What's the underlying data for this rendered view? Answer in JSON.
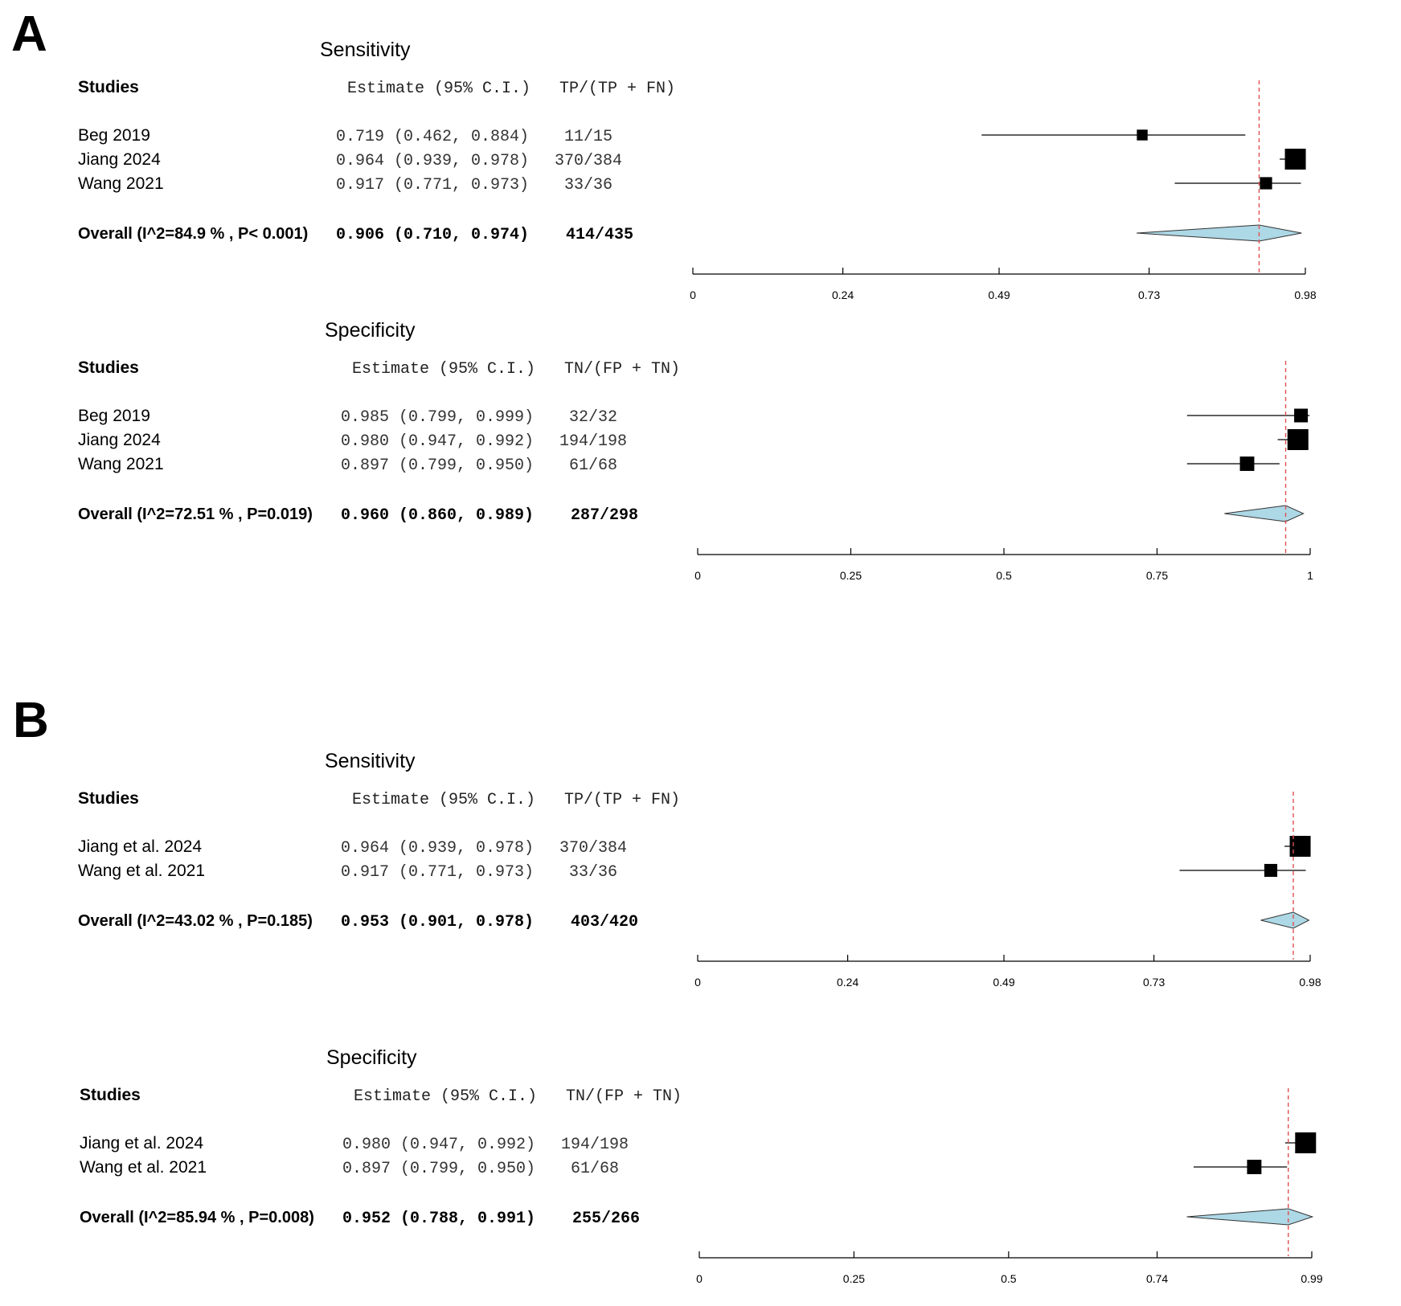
{
  "panel_labels": [
    "A",
    "B"
  ],
  "chart_data": [
    {
      "type": "forest",
      "panel": "A",
      "title": "Sensitivity",
      "columns": {
        "studies": "Studies",
        "estimate": "Estimate (95% C.I.)",
        "count": "TP/(TP + FN)"
      },
      "rows": [
        {
          "study": "Beg  2019",
          "estimate": 0.719,
          "lower": 0.462,
          "upper": 0.884,
          "estimate_text": "0.719 (0.462, 0.884)",
          "count_text": "11/15",
          "weight": 0.3
        },
        {
          "study": "Jiang 2024",
          "estimate": 0.964,
          "lower": 0.939,
          "upper": 0.978,
          "estimate_text": "0.964 (0.939, 0.978)",
          "count_text": "370/384",
          "weight": 1.0
        },
        {
          "study": "Wang 2021",
          "estimate": 0.917,
          "lower": 0.771,
          "upper": 0.973,
          "estimate_text": "0.917 (0.771, 0.973)",
          "count_text": "33/36",
          "weight": 0.4
        }
      ],
      "overall": {
        "label": "Overall (I^2=84.9 % , P< 0.001)",
        "estimate": 0.906,
        "lower": 0.71,
        "upper": 0.974,
        "estimate_text": "0.906 (0.710, 0.974)",
        "count_text": "414/435"
      },
      "reference_line": 0.906,
      "xlim": [
        0,
        0.98
      ],
      "ticks": [
        0,
        0.24,
        0.49,
        0.73,
        0.98
      ],
      "tick_labels": [
        "0",
        "0.24",
        "0.49",
        "0.73",
        "0.98"
      ]
    },
    {
      "type": "forest",
      "panel": "A",
      "title": "Specificity",
      "columns": {
        "studies": "Studies",
        "estimate": "Estimate (95% C.I.)",
        "count": "TN/(FP + TN)"
      },
      "rows": [
        {
          "study": "Beg  2019",
          "estimate": 0.985,
          "lower": 0.799,
          "upper": 0.999,
          "estimate_text": "0.985 (0.799, 0.999)",
          "count_text": "32/32",
          "weight": 0.5
        },
        {
          "study": "Jiang 2024",
          "estimate": 0.98,
          "lower": 0.947,
          "upper": 0.992,
          "estimate_text": "0.980 (0.947, 0.992)",
          "count_text": "194/198",
          "weight": 1.0
        },
        {
          "study": "Wang 2021",
          "estimate": 0.897,
          "lower": 0.799,
          "upper": 0.95,
          "estimate_text": "0.897 (0.799, 0.950)",
          "count_text": "61/68",
          "weight": 0.55
        }
      ],
      "overall": {
        "label": "Overall (I^2=72.51 % , P=0.019)",
        "estimate": 0.96,
        "lower": 0.86,
        "upper": 0.989,
        "estimate_text": "0.960 (0.860, 0.989)",
        "count_text": "287/298"
      },
      "reference_line": 0.96,
      "xlim": [
        0,
        1
      ],
      "ticks": [
        0,
        0.25,
        0.5,
        0.75,
        1
      ],
      "tick_labels": [
        "0",
        "0.25",
        "0.5",
        "0.75",
        "1"
      ]
    },
    {
      "type": "forest",
      "panel": "B",
      "title": "Sensitivity",
      "columns": {
        "studies": "Studies",
        "estimate": "Estimate (95% C.I.)",
        "count": "TP/(TP + FN)"
      },
      "rows": [
        {
          "study": "Jiang et al. 2024",
          "estimate": 0.964,
          "lower": 0.939,
          "upper": 0.978,
          "estimate_text": "0.964 (0.939, 0.978)",
          "count_text": "370/384",
          "weight": 1.0
        },
        {
          "study": "Wang et al. 2021",
          "estimate": 0.917,
          "lower": 0.771,
          "upper": 0.973,
          "estimate_text": "0.917 (0.771, 0.973)",
          "count_text": "33/36",
          "weight": 0.45
        }
      ],
      "overall": {
        "label": "Overall (I^2=43.02 % , P=0.185)",
        "estimate": 0.953,
        "lower": 0.901,
        "upper": 0.978,
        "estimate_text": "0.953 (0.901, 0.978)",
        "count_text": "403/420"
      },
      "reference_line": 0.953,
      "xlim": [
        0,
        0.98
      ],
      "ticks": [
        0,
        0.24,
        0.49,
        0.73,
        0.98
      ],
      "tick_labels": [
        "0",
        "0.24",
        "0.49",
        "0.73",
        "0.98"
      ]
    },
    {
      "type": "forest",
      "panel": "B",
      "title": "Specificity",
      "columns": {
        "studies": "Studies",
        "estimate": "Estimate (95% C.I.)",
        "count": "TN/(FP + TN)"
      },
      "rows": [
        {
          "study": "Jiang et al. 2024",
          "estimate": 0.98,
          "lower": 0.947,
          "upper": 0.992,
          "estimate_text": "0.980 (0.947, 0.992)",
          "count_text": "194/198",
          "weight": 1.0
        },
        {
          "study": "Wang et al. 2021",
          "estimate": 0.897,
          "lower": 0.799,
          "upper": 0.95,
          "estimate_text": "0.897 (0.799, 0.950)",
          "count_text": "61/68",
          "weight": 0.55
        }
      ],
      "overall": {
        "label": "Overall (I^2=85.94 % , P=0.008)",
        "estimate": 0.952,
        "lower": 0.788,
        "upper": 0.991,
        "estimate_text": "0.952 (0.788, 0.991)",
        "count_text": "255/266"
      },
      "reference_line": 0.952,
      "xlim": [
        0,
        0.99
      ],
      "ticks": [
        0,
        0.25,
        0.5,
        0.74,
        0.99
      ],
      "tick_labels": [
        "0",
        "0.25",
        "0.5",
        "0.74",
        "0.99"
      ]
    }
  ],
  "colors": {
    "diamond_fill": "#add8e6",
    "reference_line": "#e05050",
    "ink": "#000000"
  }
}
